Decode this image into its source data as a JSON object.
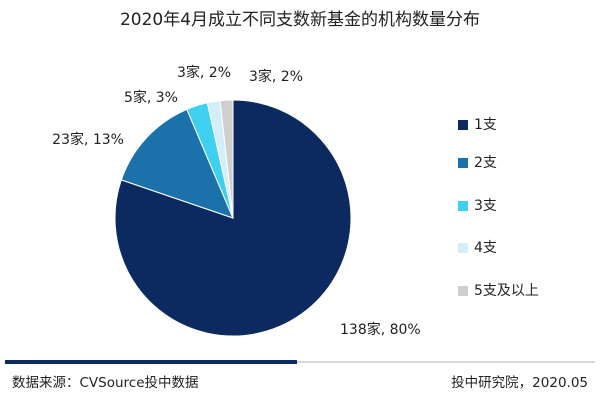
{
  "chart_data": {
    "type": "pie",
    "title": "2020年4月成立不同支数新基金的机构数量分布",
    "categories": [
      "1支",
      "2支",
      "3支",
      "4支",
      "5支及以上"
    ],
    "values": [
      138,
      23,
      5,
      3,
      3
    ],
    "value_labels": [
      "138家, 80%",
      "23家, 13%",
      "5家, 3%",
      "3家, 2%",
      "3家, 2%"
    ],
    "colors": [
      "#0c2a5f",
      "#1b72aa",
      "#3fd0f0",
      "#d3eef8",
      "#cfcfcf"
    ],
    "legend": "right",
    "source": "数据来源：CVSource投中数据",
    "credit": "投中研究院，2020.05"
  }
}
